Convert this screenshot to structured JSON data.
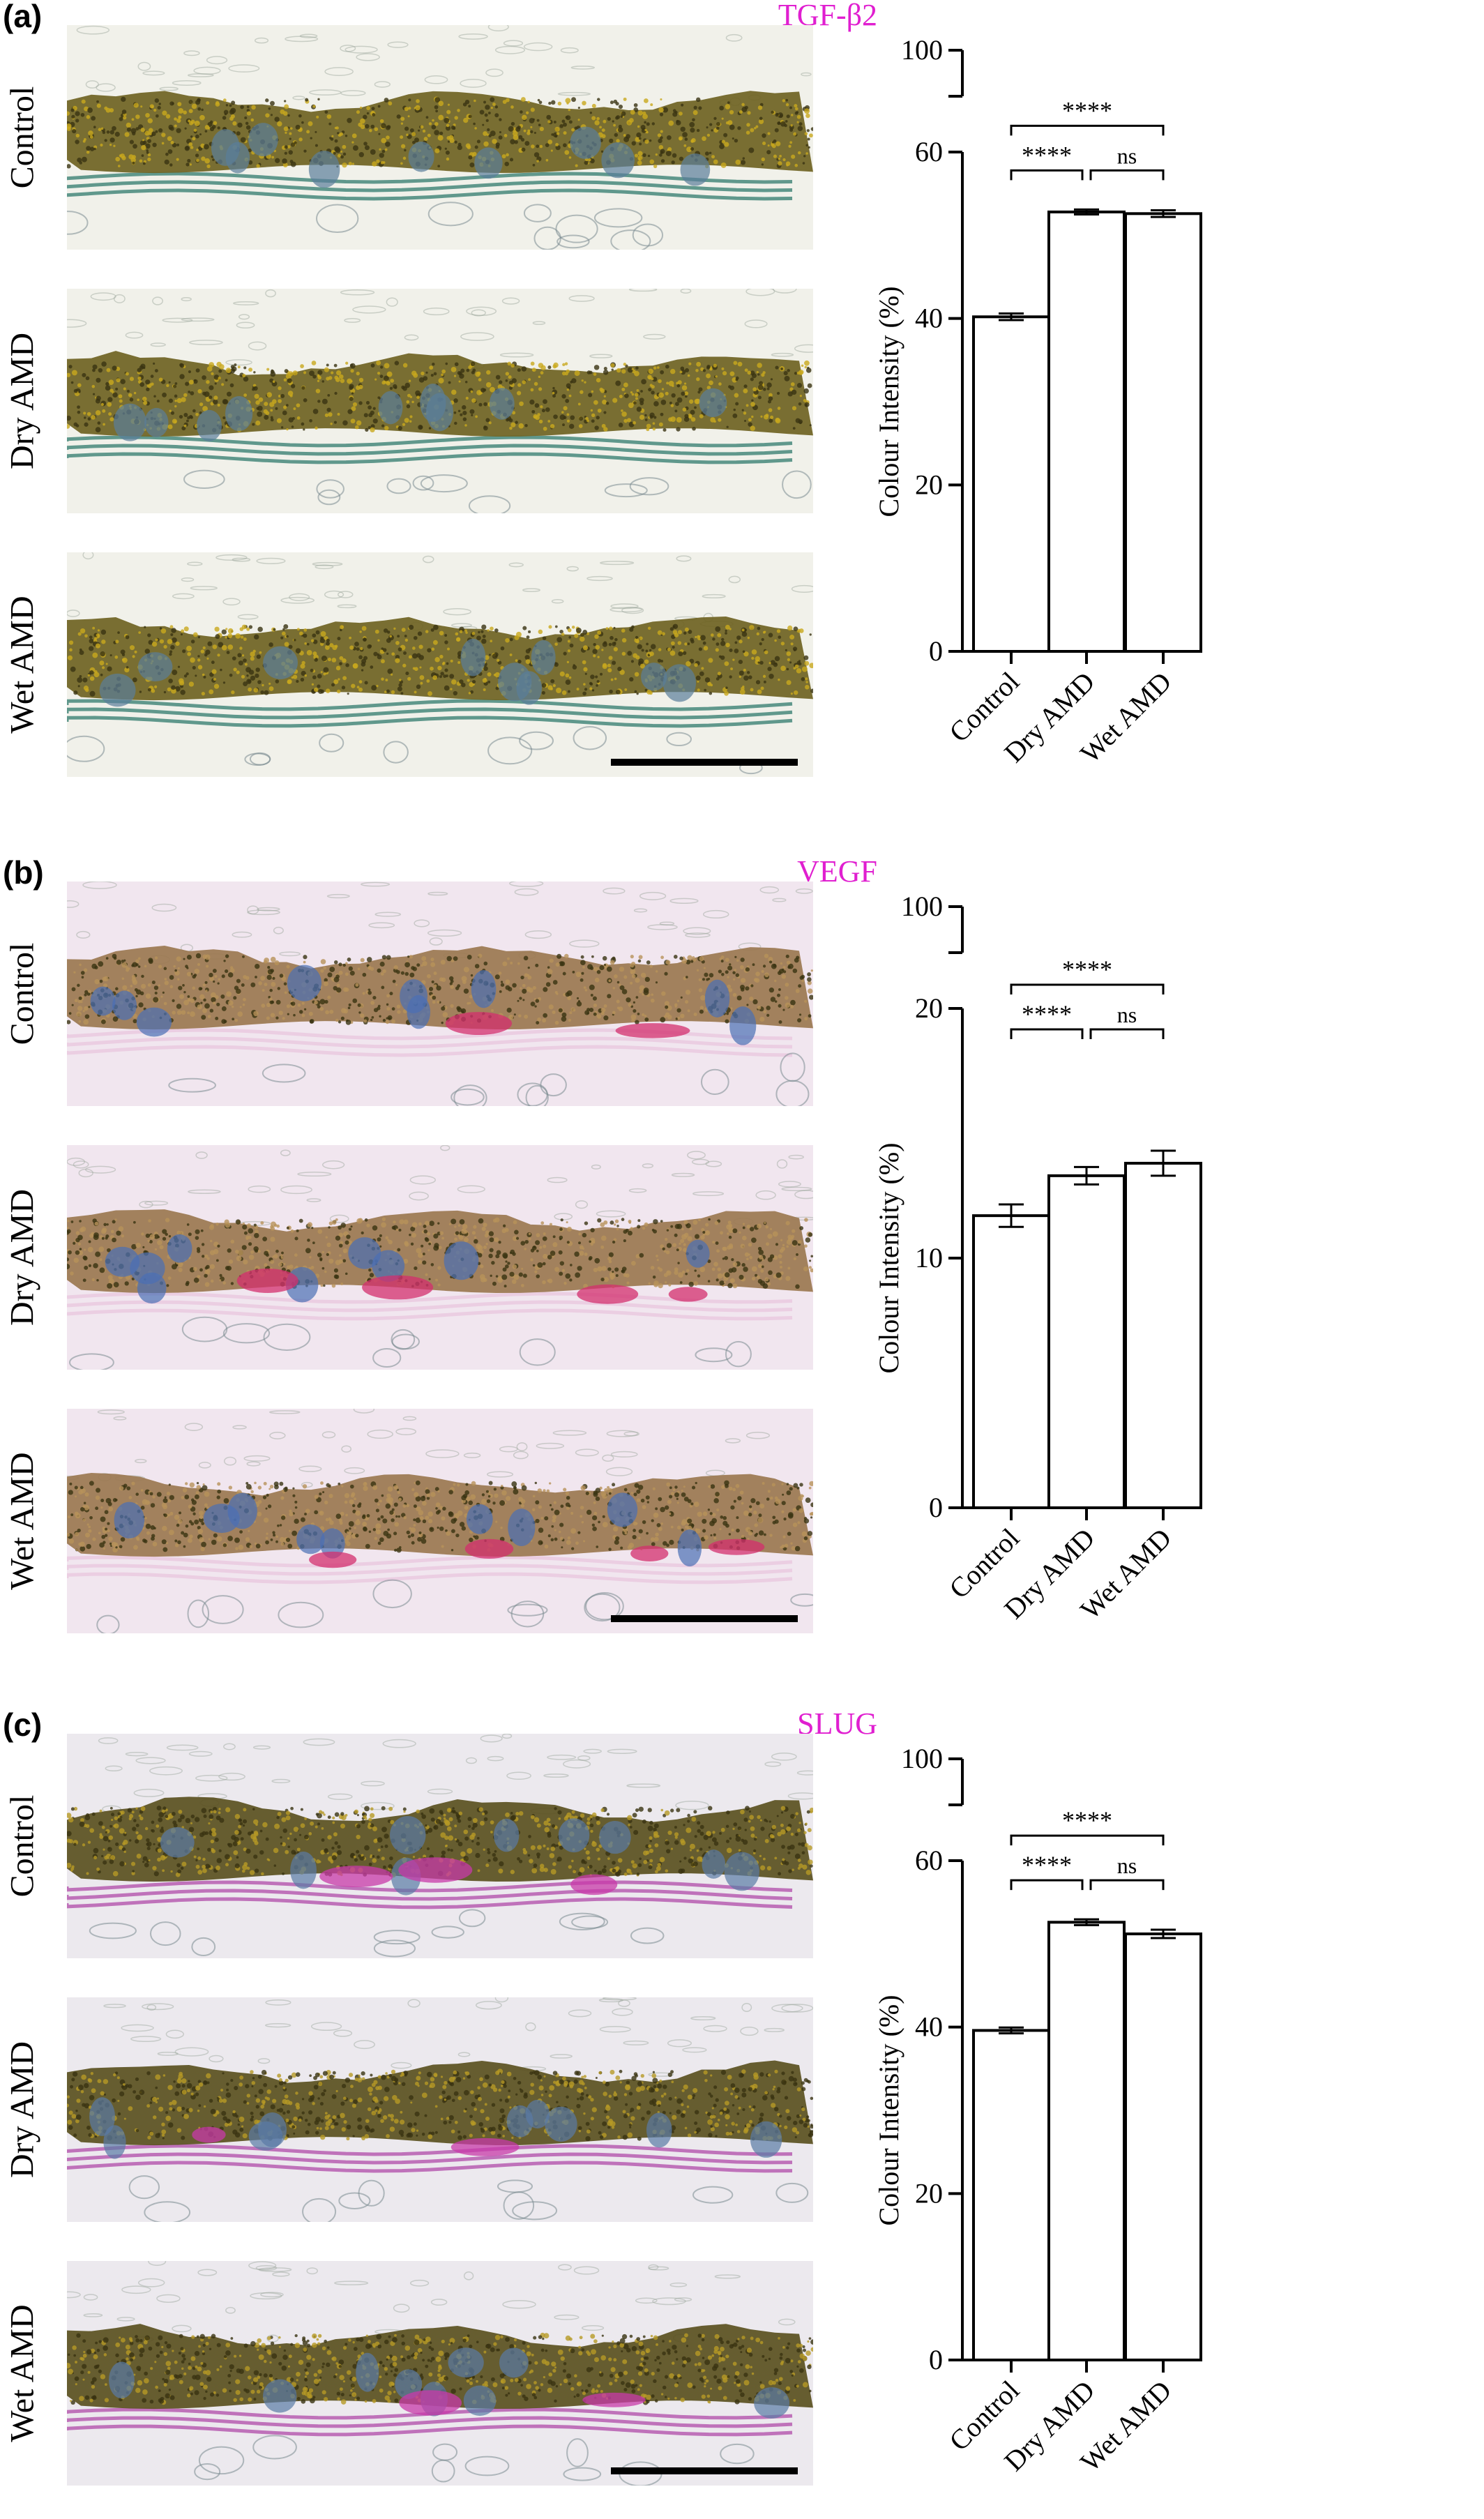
{
  "panels": [
    {
      "letter": "(a)",
      "marker": "TGF-β2",
      "rows": [
        "Control",
        "Dry AMD",
        "Wet AMD"
      ],
      "tissue": {
        "bg": "#f1f1ea",
        "band": "#6f6322",
        "dots": "#c9a91d",
        "nuclei": "#5a7d9a",
        "membrane": "#2f7a6c",
        "pink": ""
      }
    },
    {
      "letter": "(b)",
      "marker": "VEGF",
      "rows": [
        "Control",
        "Dry AMD",
        "Wet AMD"
      ],
      "tissue": {
        "bg": "#f1e6ef",
        "band": "#9b7850",
        "dots": "#b8925a",
        "nuclei": "#4a6fb5",
        "membrane": "#e8c6de",
        "pink": "#d32f6e"
      }
    },
    {
      "letter": "(c)",
      "marker": "SLUG",
      "rows": [
        "Control",
        "Dry AMD",
        "Wet AMD"
      ],
      "tissue": {
        "bg": "#ece9ee",
        "band": "#5a5020",
        "dots": "#b69a26",
        "nuclei": "#5a7aa5",
        "membrane": "#b04aa8",
        "pink": "#c83aa8"
      }
    }
  ],
  "chart_data": [
    {
      "type": "bar",
      "categories": [
        "Control",
        "Dry AMD",
        "Wet AMD"
      ],
      "values": [
        40.2,
        52.8,
        52.6
      ],
      "errors": [
        0.4,
        0.3,
        0.4
      ],
      "ylabel": "Colour Intensity (%)",
      "axis_break": {
        "lower": [
          0,
          60
        ],
        "upper_label": 100
      },
      "yticks": [
        0,
        20,
        40,
        60
      ],
      "significance": [
        {
          "from": "Control",
          "to": "Wet AMD",
          "label": "****"
        },
        {
          "from": "Control",
          "to": "Dry AMD",
          "label": "****"
        },
        {
          "from": "Dry AMD",
          "to": "Wet AMD",
          "label": "ns"
        }
      ]
    },
    {
      "type": "bar",
      "categories": [
        "Control",
        "Dry AMD",
        "Wet AMD"
      ],
      "values": [
        11.7,
        13.3,
        13.8
      ],
      "errors": [
        0.45,
        0.35,
        0.5
      ],
      "ylabel": "Colour Intensity (%)",
      "axis_break": {
        "lower": [
          0,
          20
        ],
        "upper_label": 100
      },
      "yticks": [
        0,
        10,
        20
      ],
      "significance": [
        {
          "from": "Control",
          "to": "Wet AMD",
          "label": "****"
        },
        {
          "from": "Control",
          "to": "Dry AMD",
          "label": "****"
        },
        {
          "from": "Dry AMD",
          "to": "Wet AMD",
          "label": "ns"
        }
      ]
    },
    {
      "type": "bar",
      "categories": [
        "Control",
        "Dry AMD",
        "Wet AMD"
      ],
      "values": [
        39.6,
        52.6,
        51.2
      ],
      "errors": [
        0.35,
        0.35,
        0.5
      ],
      "ylabel": "Colour Intensity (%)",
      "axis_break": {
        "lower": [
          0,
          60
        ],
        "upper_label": 100
      },
      "yticks": [
        0,
        20,
        40,
        60
      ],
      "significance": [
        {
          "from": "Control",
          "to": "Wet AMD",
          "label": "****"
        },
        {
          "from": "Control",
          "to": "Dry AMD",
          "label": "****"
        },
        {
          "from": "Dry AMD",
          "to": "Wet AMD",
          "label": "ns"
        }
      ]
    }
  ]
}
